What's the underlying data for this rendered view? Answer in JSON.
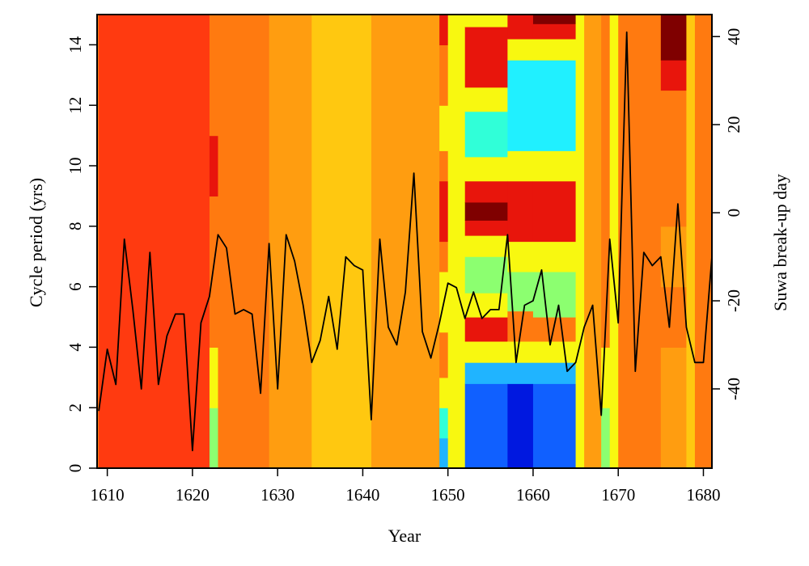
{
  "chart_data": {
    "type": "heatmap",
    "xlabel": "Year",
    "ylabel": "Cycle period (yrs)",
    "ylabel_right": "Suwa break-up day",
    "xlim": [
      1608.8,
      1681
    ],
    "ylim": [
      0,
      15
    ],
    "ylim_right": [
      -58,
      45
    ],
    "x_ticks": [
      1610,
      1620,
      1630,
      1640,
      1650,
      1660,
      1670,
      1680
    ],
    "y_ticks": [
      0,
      2,
      4,
      6,
      8,
      10,
      12,
      14
    ],
    "y_ticks_right": [
      -40,
      -20,
      0,
      20,
      40
    ],
    "colors": {
      "dark_red": "#7f0000",
      "red": "#e8150c",
      "red_orange": "#ff3a10",
      "orange": "#ff7a10",
      "amber": "#ff9d10",
      "gold": "#ffc810",
      "yellow": "#f8f810",
      "yellow_green": "#c8ff40",
      "light_green": "#8cff70",
      "aqua": "#30ffd8",
      "cyan": "#20f0ff",
      "sky": "#20b4ff",
      "blue": "#1060ff",
      "deep_blue": "#0018e0",
      "navy": "#00008c",
      "line": "#000000"
    },
    "heatmap_columns": [
      {
        "from": 1609,
        "to": 1622,
        "bands": [
          [
            0,
            15,
            "red_orange"
          ]
        ]
      },
      {
        "from": 1622,
        "to": 1623,
        "bands": [
          [
            0,
            2,
            "light_green"
          ],
          [
            2,
            4,
            "yellow"
          ],
          [
            4,
            9,
            "orange"
          ],
          [
            9,
            11,
            "red"
          ],
          [
            11,
            15,
            "orange"
          ]
        ]
      },
      {
        "from": 1623,
        "to": 1629,
        "bands": [
          [
            0,
            15,
            "orange"
          ]
        ]
      },
      {
        "from": 1629,
        "to": 1634,
        "bands": [
          [
            0,
            15,
            "amber"
          ]
        ]
      },
      {
        "from": 1634,
        "to": 1641,
        "bands": [
          [
            0,
            15,
            "gold"
          ]
        ]
      },
      {
        "from": 1641,
        "to": 1645,
        "bands": [
          [
            0,
            15,
            "amber"
          ]
        ]
      },
      {
        "from": 1645,
        "to": 1649,
        "bands": [
          [
            0,
            15,
            "amber"
          ]
        ]
      },
      {
        "from": 1649,
        "to": 1650,
        "bands": [
          [
            0,
            1,
            "sky"
          ],
          [
            1,
            2,
            "aqua"
          ],
          [
            2,
            3,
            "yellow"
          ],
          [
            3,
            4.5,
            "orange"
          ],
          [
            4.5,
            6.5,
            "yellow"
          ],
          [
            6.5,
            7.5,
            "orange"
          ],
          [
            7.5,
            9.5,
            "red"
          ],
          [
            9.5,
            10.5,
            "orange"
          ],
          [
            10.5,
            12,
            "yellow"
          ],
          [
            12,
            14,
            "orange"
          ],
          [
            14,
            15,
            "red"
          ]
        ]
      },
      {
        "from": 1650,
        "to": 1652,
        "bands": [
          [
            0,
            15,
            "yellow"
          ]
        ]
      },
      {
        "from": 1652,
        "to": 1657,
        "bands": [
          [
            0,
            2.8,
            "blue"
          ],
          [
            2.8,
            3.5,
            "sky"
          ],
          [
            3.5,
            4.2,
            "yellow"
          ],
          [
            4.2,
            5,
            "red"
          ],
          [
            5,
            5.8,
            "yellow"
          ],
          [
            5.8,
            7,
            "light_green"
          ],
          [
            7,
            7.7,
            "yellow"
          ],
          [
            7.7,
            8.2,
            "red"
          ],
          [
            8.2,
            8.8,
            "dark_red"
          ],
          [
            8.8,
            9.5,
            "red"
          ],
          [
            9.5,
            10.3,
            "yellow"
          ],
          [
            10.3,
            11.8,
            "aqua"
          ],
          [
            11.8,
            12.6,
            "yellow"
          ],
          [
            12.6,
            14.6,
            "red"
          ],
          [
            14.6,
            15,
            "yellow"
          ]
        ]
      },
      {
        "from": 1657,
        "to": 1660,
        "bands": [
          [
            0,
            2.8,
            "deep_blue"
          ],
          [
            2.8,
            3.5,
            "sky"
          ],
          [
            3.5,
            4.2,
            "yellow"
          ],
          [
            4.2,
            5.2,
            "orange"
          ],
          [
            5.2,
            6.5,
            "light_green"
          ],
          [
            6.5,
            7.5,
            "yellow"
          ],
          [
            7.5,
            9.5,
            "red"
          ],
          [
            9.5,
            10.5,
            "yellow"
          ],
          [
            10.5,
            13.5,
            "cyan"
          ],
          [
            13.5,
            14.2,
            "yellow"
          ],
          [
            14.2,
            15,
            "red"
          ]
        ]
      },
      {
        "from": 1660,
        "to": 1665,
        "bands": [
          [
            0,
            2.8,
            "blue"
          ],
          [
            2.8,
            3.5,
            "sky"
          ],
          [
            3.5,
            4.2,
            "yellow"
          ],
          [
            4.2,
            5,
            "orange"
          ],
          [
            5,
            6.5,
            "light_green"
          ],
          [
            6.5,
            7.5,
            "yellow"
          ],
          [
            7.5,
            9.5,
            "red"
          ],
          [
            9.5,
            10.5,
            "yellow"
          ],
          [
            10.5,
            13.5,
            "cyan"
          ],
          [
            13.5,
            14.2,
            "yellow"
          ],
          [
            14.2,
            14.7,
            "red"
          ],
          [
            14.7,
            15,
            "dark_red"
          ]
        ]
      },
      {
        "from": 1665,
        "to": 1666,
        "bands": [
          [
            0,
            15,
            "yellow"
          ]
        ]
      },
      {
        "from": 1666,
        "to": 1668,
        "bands": [
          [
            0,
            15,
            "amber"
          ]
        ]
      },
      {
        "from": 1668,
        "to": 1669,
        "bands": [
          [
            0,
            2,
            "light_green"
          ],
          [
            2,
            4,
            "yellow"
          ],
          [
            4,
            15,
            "orange"
          ]
        ]
      },
      {
        "from": 1669,
        "to": 1670,
        "bands": [
          [
            0,
            15,
            "yellow"
          ]
        ]
      },
      {
        "from": 1670,
        "to": 1675,
        "bands": [
          [
            0,
            15,
            "orange"
          ]
        ]
      },
      {
        "from": 1675,
        "to": 1678,
        "bands": [
          [
            0,
            4,
            "amber"
          ],
          [
            4,
            6,
            "orange"
          ],
          [
            6,
            8,
            "amber"
          ],
          [
            8,
            10,
            "orange"
          ],
          [
            10,
            12.5,
            "orange"
          ],
          [
            12.5,
            13.5,
            "red"
          ],
          [
            13.5,
            15,
            "dark_red"
          ]
        ]
      },
      {
        "from": 1678,
        "to": 1679,
        "bands": [
          [
            0,
            15,
            "gold"
          ]
        ]
      },
      {
        "from": 1679,
        "to": 1681,
        "bands": [
          [
            0,
            15,
            "orange"
          ]
        ]
      }
    ],
    "series": [
      {
        "x": [
          1609,
          1610,
          1611,
          1612,
          1613,
          1614,
          1615,
          1616,
          1617,
          1618,
          1619,
          1620,
          1621,
          1622,
          1623,
          1624,
          1625,
          1626,
          1627,
          1628,
          1629,
          1630,
          1631,
          1632,
          1633,
          1634,
          1635,
          1636,
          1637,
          1638,
          1639,
          1640,
          1641,
          1642,
          1643,
          1644,
          1645,
          1646,
          1647,
          1648,
          1649,
          1650,
          1651,
          1652,
          1653,
          1654,
          1655,
          1656,
          1657,
          1658,
          1659,
          1660,
          1661,
          1662,
          1663,
          1664,
          1665,
          1666,
          1667,
          1668,
          1669,
          1670,
          1671,
          1672,
          1673,
          1674,
          1675,
          1676,
          1677,
          1678,
          1679,
          1680,
          1681
        ],
        "y": [
          -45,
          -31,
          -39,
          -6,
          -22,
          -40,
          -9,
          -39,
          -28,
          -23,
          -23,
          -54,
          -25,
          -19,
          -5,
          -8,
          -23,
          -22,
          -23,
          -41,
          -7,
          -40,
          -5,
          -11,
          -21,
          -34,
          -29,
          -19,
          -31,
          -10,
          -12,
          -13,
          -47,
          -6,
          -26,
          -30,
          -18,
          9,
          -27,
          -33,
          -25,
          -16,
          -17,
          -24,
          -18,
          -24,
          -22,
          -22,
          -5,
          -34,
          -21,
          -20,
          -13,
          -30,
          -21,
          -36,
          -34,
          -26,
          -21,
          -46,
          -6,
          -25,
          41,
          -36,
          -9,
          -12,
          -10,
          -26,
          2,
          -26,
          -34,
          -34,
          -10
        ]
      }
    ]
  }
}
